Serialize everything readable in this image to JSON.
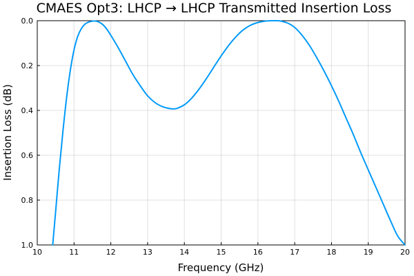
{
  "chart_data": {
    "type": "line",
    "title": "CMAES Opt3: LHCP → LHCP Transmitted Insertion Loss",
    "xlabel": "Frequency (GHz)",
    "ylabel": "Insertion Loss (dB)",
    "xlim": [
      10,
      20
    ],
    "ylim": [
      0.0,
      1.0
    ],
    "y_inverted": true,
    "grid": true,
    "legend": "none",
    "x_ticks": [
      "10",
      "11",
      "12",
      "13",
      "14",
      "15",
      "16",
      "17",
      "18",
      "19",
      "20"
    ],
    "y_ticks": [
      "0.0",
      "0.2",
      "0.4",
      "0.6",
      "0.8",
      "1.0"
    ],
    "series": [
      {
        "color": "#009af9",
        "x": [
          10.42,
          10.5,
          10.6,
          10.7,
          10.8,
          10.9,
          11.0,
          11.1,
          11.2,
          11.3,
          11.4,
          11.5,
          11.55,
          11.6,
          11.7,
          11.8,
          11.9,
          12.0,
          12.2,
          12.4,
          12.6,
          12.8,
          13.0,
          13.2,
          13.4,
          13.6,
          13.7,
          13.8,
          14.0,
          14.2,
          14.4,
          14.6,
          14.8,
          15.0,
          15.2,
          15.4,
          15.6,
          15.8,
          16.0,
          16.2,
          16.4,
          16.5,
          16.6,
          16.8,
          17.0,
          17.2,
          17.4,
          17.6,
          17.8,
          18.0,
          18.2,
          18.4,
          18.6,
          18.8,
          19.0,
          19.2,
          19.4,
          19.6,
          19.8,
          20.0
        ],
        "y": [
          1.0,
          0.85,
          0.66,
          0.49,
          0.34,
          0.22,
          0.13,
          0.07,
          0.035,
          0.015,
          0.006,
          0.002,
          0.001,
          0.002,
          0.008,
          0.02,
          0.04,
          0.065,
          0.12,
          0.18,
          0.24,
          0.29,
          0.335,
          0.365,
          0.383,
          0.392,
          0.393,
          0.391,
          0.375,
          0.345,
          0.305,
          0.258,
          0.207,
          0.157,
          0.111,
          0.072,
          0.041,
          0.02,
          0.008,
          0.002,
          0.0,
          0.0,
          0.001,
          0.01,
          0.03,
          0.065,
          0.11,
          0.165,
          0.225,
          0.29,
          0.36,
          0.435,
          0.51,
          0.59,
          0.665,
          0.74,
          0.815,
          0.89,
          0.96,
          1.0
        ]
      }
    ]
  }
}
